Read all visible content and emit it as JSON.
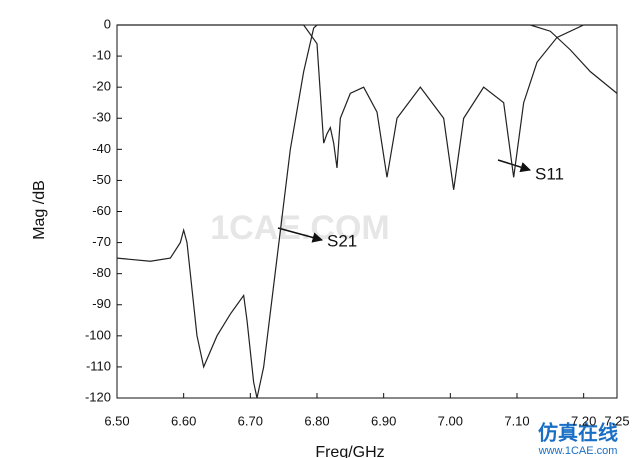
{
  "chart_data": {
    "type": "line",
    "xlabel": "Freq/GHz",
    "ylabel": "Mag /dB",
    "xlim": [
      6.5,
      7.25
    ],
    "ylim": [
      -120,
      0
    ],
    "xticks": [
      {
        "value": 6.5,
        "label": "6.50"
      },
      {
        "value": 6.6,
        "label": "6.60"
      },
      {
        "value": 6.7,
        "label": "6.70"
      },
      {
        "value": 6.8,
        "label": "6.80"
      },
      {
        "value": 6.9,
        "label": "6.90"
      },
      {
        "value": 7.0,
        "label": "7.00"
      },
      {
        "value": 7.1,
        "label": "7.10"
      },
      {
        "value": 7.2,
        "label": "7.20"
      },
      {
        "value": 7.25,
        "label": "7.25"
      }
    ],
    "yticks": [
      0,
      -10,
      -20,
      -30,
      -40,
      -50,
      -60,
      -70,
      -80,
      -90,
      -100,
      -110,
      -120
    ],
    "grid": false,
    "series": [
      {
        "name": "S21",
        "color": "#222222",
        "x": [
          6.5,
          6.55,
          6.58,
          6.595,
          6.6,
          6.605,
          6.62,
          6.63,
          6.65,
          6.67,
          6.68,
          6.69,
          6.695,
          6.705,
          6.71,
          6.72,
          6.74,
          6.76,
          6.78,
          6.795,
          6.8,
          6.85,
          7.0,
          7.12,
          7.15,
          7.18,
          7.21,
          7.25
        ],
        "values": [
          -75,
          -76,
          -75,
          -70,
          -66,
          -70,
          -100,
          -110,
          -100,
          -93,
          -90,
          -87,
          -95,
          -115,
          -120,
          -110,
          -75,
          -40,
          -15,
          -1,
          0,
          0,
          0,
          0,
          -2,
          -8,
          -15,
          -22
        ]
      },
      {
        "name": "S11",
        "color": "#222222",
        "x": [
          6.5,
          6.7,
          6.78,
          6.8,
          6.81,
          6.815,
          6.82,
          6.825,
          6.83,
          6.835,
          6.85,
          6.87,
          6.89,
          6.905,
          6.92,
          6.955,
          6.99,
          7.005,
          7.02,
          7.05,
          7.08,
          7.095,
          7.11,
          7.13,
          7.16,
          7.2,
          7.25
        ],
        "values": [
          0,
          0,
          0,
          -6,
          -38,
          -35,
          -33,
          -38,
          -46,
          -30,
          -22,
          -20,
          -28,
          -49,
          -30,
          -20,
          -30,
          -53,
          -30,
          -20,
          -25,
          -49,
          -25,
          -12,
          -4,
          0,
          0
        ]
      }
    ],
    "annotations": [
      "1CAE.COM",
      "仿真在线",
      "www.1CAE.com"
    ]
  }
}
